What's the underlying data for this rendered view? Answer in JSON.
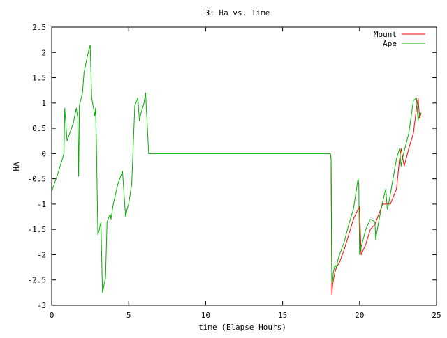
{
  "chart_data": {
    "type": "line",
    "title": "3: Ha vs. Time",
    "xlabel": "time (Elapse Hours)",
    "ylabel": "HA",
    "xlim": [
      0,
      25
    ],
    "ylim": [
      -3,
      2.5
    ],
    "xticks": [
      0,
      5,
      10,
      15,
      20,
      25
    ],
    "yticks": [
      2.5,
      2,
      1.5,
      1,
      0.5,
      0,
      -0.5,
      -1,
      -1.5,
      -2,
      -2.5,
      -3
    ],
    "grid": false,
    "legend_position": "top-right",
    "series": [
      {
        "name": "Mount",
        "color": "#ff0000",
        "x": [
          18.0,
          18.1,
          18.15,
          18.2,
          18.25,
          18.3,
          18.4,
          18.5,
          18.6,
          18.7,
          19.0,
          19.3,
          19.6,
          19.9,
          20.0,
          20.1,
          20.4,
          20.7,
          21.0,
          21.5,
          22.0,
          22.4,
          22.6,
          22.7,
          22.9,
          23.2,
          23.5,
          23.7,
          23.8,
          23.9,
          24.0
        ],
        "y": [
          0.0,
          0.0,
          -0.1,
          -2.8,
          -2.6,
          -2.5,
          -2.35,
          -2.25,
          -2.2,
          -2.15,
          -1.9,
          -1.6,
          -1.3,
          -1.1,
          -1.05,
          -2.0,
          -1.8,
          -1.5,
          -1.4,
          -1.0,
          -1.0,
          -0.7,
          -0.1,
          0.1,
          -0.25,
          0.1,
          0.4,
          0.9,
          1.1,
          0.7,
          0.8
        ]
      },
      {
        "name": "Ape",
        "color": "#00b000",
        "x": [
          0.0,
          0.4,
          0.7,
          0.8,
          0.85,
          1.0,
          1.4,
          1.6,
          1.7,
          1.75,
          1.8,
          2.0,
          2.1,
          2.3,
          2.5,
          2.6,
          2.8,
          2.85,
          2.9,
          3.0,
          3.1,
          3.2,
          3.3,
          3.4,
          3.5,
          3.6,
          3.8,
          3.85,
          4.0,
          4.3,
          4.6,
          4.8,
          4.9,
          5.0,
          5.2,
          5.4,
          5.6,
          5.7,
          5.8,
          5.9,
          6.0,
          6.1,
          6.3,
          6.5,
          6.6,
          7.0,
          10.0,
          15.0,
          18.0,
          18.1,
          18.15,
          18.2,
          18.25,
          18.3,
          18.4,
          18.5,
          18.6,
          18.7,
          19.0,
          19.3,
          19.6,
          19.9,
          19.95,
          20.0,
          20.1,
          20.4,
          20.7,
          21.0,
          21.05,
          21.1,
          21.3,
          21.5,
          21.7,
          21.8,
          21.85,
          22.0,
          22.4,
          22.6,
          22.7,
          22.75,
          22.9,
          23.2,
          23.5,
          23.7,
          23.8,
          23.9,
          24.0
        ],
        "y": [
          -0.75,
          -0.4,
          -0.1,
          0.0,
          0.9,
          0.25,
          0.6,
          0.9,
          0.7,
          -0.45,
          0.95,
          1.2,
          1.6,
          1.9,
          2.15,
          1.1,
          0.75,
          0.9,
          0.3,
          -1.6,
          -1.5,
          -1.35,
          -2.75,
          -2.6,
          -2.45,
          -1.35,
          -1.2,
          -1.3,
          -1.0,
          -0.6,
          -0.35,
          -1.25,
          -1.1,
          -1.0,
          -0.6,
          0.95,
          1.1,
          0.65,
          0.8,
          0.9,
          1.0,
          1.2,
          0.0,
          0.0,
          0.0,
          0.0,
          0.0,
          0.0,
          0.0,
          0.0,
          -0.1,
          -2.55,
          -2.5,
          -2.35,
          -2.2,
          -2.25,
          -2.1,
          -2.0,
          -1.75,
          -1.4,
          -1.1,
          -0.5,
          -0.6,
          -2.0,
          -1.85,
          -1.5,
          -1.3,
          -1.35,
          -1.7,
          -1.6,
          -1.25,
          -0.95,
          -0.7,
          -1.1,
          -1.05,
          -0.8,
          -0.1,
          0.1,
          -0.25,
          -0.15,
          0.05,
          0.4,
          1.05,
          1.1,
          0.65,
          0.8,
          0.8
        ]
      }
    ]
  }
}
